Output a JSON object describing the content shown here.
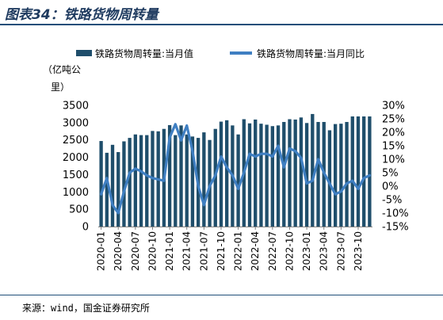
{
  "header": {
    "title": "图表34：铁路货物周转量"
  },
  "footer": {
    "source": "来源：wind，国金证券研究所"
  },
  "chart_data": {
    "type": "bar+line",
    "categories": [
      "2020-01",
      "2020-02",
      "2020-03",
      "2020-04",
      "2020-05",
      "2020-06",
      "2020-07",
      "2020-08",
      "2020-09",
      "2020-10",
      "2020-11",
      "2020-12",
      "2021-01",
      "2021-02",
      "2021-03",
      "2021-04",
      "2021-05",
      "2021-06",
      "2021-07",
      "2021-08",
      "2021-09",
      "2021-10",
      "2021-11",
      "2021-12",
      "2022-01",
      "2022-02",
      "2022-03",
      "2022-04",
      "2022-05",
      "2022-06",
      "2022-07",
      "2022-08",
      "2022-09",
      "2022-10",
      "2022-11",
      "2022-12",
      "2023-01",
      "2023-02",
      "2023-03",
      "2023-04",
      "2023-05",
      "2023-06",
      "2023-07",
      "2023-08",
      "2023-09",
      "2023-10",
      "2023-11",
      "2023-12"
    ],
    "x_tick_labels": [
      "2020-01",
      "2020-04",
      "2020-07",
      "2020-10",
      "2021-01",
      "2021-04",
      "2021-07",
      "2021-10",
      "2022-01",
      "2022-04",
      "2022-07",
      "2022-10",
      "2023-01",
      "2023-04",
      "2023-07",
      "2023-10"
    ],
    "series": [
      {
        "name": "铁路货物周转量:当月值",
        "type": "bar",
        "axis": "left",
        "color": "#1f4e6b",
        "values": [
          2470,
          2130,
          2360,
          2150,
          2460,
          2560,
          2660,
          2640,
          2640,
          2760,
          2750,
          2820,
          2930,
          2640,
          2920,
          2660,
          2600,
          2560,
          2720,
          2500,
          2820,
          3030,
          3070,
          2920,
          2660,
          3100,
          2980,
          3090,
          2970,
          2940,
          2900,
          2920,
          3020,
          3100,
          3090,
          3150,
          2990,
          3250,
          3020,
          3020,
          2780,
          2960,
          2970,
          3020,
          3180,
          3180,
          3180,
          3180
        ]
      },
      {
        "name": "铁路货物周转量:当月同比",
        "type": "line",
        "axis": "right",
        "color": "#3f7fc2",
        "values": [
          -3,
          3,
          -7,
          -10,
          -2,
          5,
          6.5,
          5.5,
          4,
          3,
          2.5,
          2,
          18,
          23,
          17,
          22.5,
          13,
          0,
          -7,
          0,
          4,
          11,
          7,
          4,
          -1,
          5,
          12,
          11,
          12,
          12,
          11,
          15,
          7,
          14,
          13,
          10.5,
          1,
          2,
          10,
          5,
          1,
          -3,
          -2,
          1,
          2,
          -1,
          3,
          4
        ]
      }
    ],
    "y_left": {
      "label": "（亿吨公里）",
      "min": 0,
      "max": 3500,
      "ticks": [
        0,
        500,
        1000,
        1500,
        2000,
        2500,
        3000,
        3500
      ]
    },
    "y_right": {
      "min": -15,
      "max": 30,
      "ticks": [
        "30%",
        "25%",
        "20%",
        "15%",
        "10%",
        "5%",
        "0%",
        "-5%",
        "-10%",
        "-15%"
      ]
    },
    "legend": {
      "position": "top"
    },
    "grid": false
  }
}
